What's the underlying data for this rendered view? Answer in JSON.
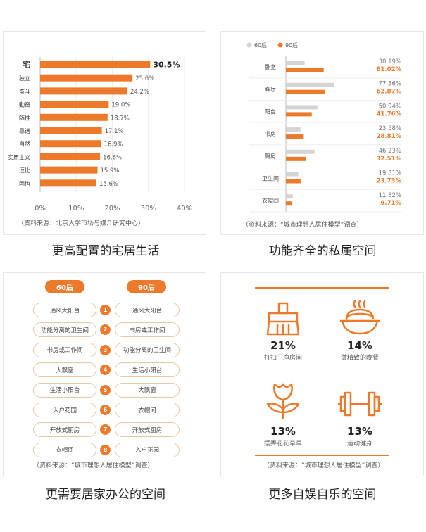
{
  "chart_data": [
    {
      "type": "bar",
      "orientation": "horizontal",
      "categories": [
        "宅",
        "独立",
        "奋斗",
        "勤奋",
        "随性",
        "靠谱",
        "自然",
        "实用主义",
        "逗比",
        "固执"
      ],
      "values": [
        30.5,
        25.6,
        24.2,
        19.0,
        18.7,
        17.1,
        16.9,
        16.6,
        15.9,
        15.6
      ],
      "value_labels": [
        "30.5%",
        "25.6%",
        "24.2%",
        "19.0%",
        "18.7%",
        "17.1%",
        "16.9%",
        "16.6%",
        "15.9%",
        "15.6%"
      ],
      "xticks": [
        "0%",
        "10%",
        "20%",
        "30%",
        "40%"
      ],
      "xlim": [
        0,
        40
      ],
      "source": "（资料来源：北京大学市场与媒介研究中心）",
      "color": "#ec7a2a"
    },
    {
      "type": "bar",
      "orientation": "horizontal",
      "categories": [
        "卧室",
        "客厅",
        "阳台",
        "书房",
        "厨房",
        "卫生间",
        "衣帽间"
      ],
      "series": [
        {
          "name": "60后",
          "color": "#d4d4d4",
          "values": [
            30.19,
            77.36,
            50.94,
            23.58,
            46.23,
            19.81,
            11.32
          ],
          "labels": [
            "30.19%",
            "77.36%",
            "50.94%",
            "23.58%",
            "46.23%",
            "19.81%",
            "11.32%"
          ]
        },
        {
          "name": "90后",
          "color": "#ec7a2a",
          "values": [
            61.02,
            62.87,
            41.76,
            28.81,
            32.51,
            23.73,
            9.71
          ],
          "labels": [
            "61.02%",
            "62.87%",
            "41.76%",
            "28.81%",
            "32.51%",
            "23.73%",
            "9.71%"
          ]
        }
      ],
      "xlim": [
        0,
        100
      ],
      "source": "（资料来源：“城市理想人居住模型”调查）"
    }
  ],
  "captions": {
    "tl": "更高配置的宅居生活",
    "tr": "功能齐全的私属空间",
    "bl": "更需要居家办公的空间",
    "br": "更多自娱自乐的空间"
  },
  "ranking": {
    "left_header": "60后",
    "right_header": "90后",
    "left": [
      "通风大阳台",
      "功能分离的卫生间",
      "书房或工作间",
      "大飘窗",
      "生活小阳台",
      "入户花园",
      "开放式厨房",
      "衣帽间"
    ],
    "right": [
      "通风大阳台",
      "书房或工作间",
      "功能分离的卫生间",
      "生活小阳台",
      "大飘窗",
      "衣帽间",
      "开放式厨房",
      "入户花园"
    ],
    "numbers": [
      "1",
      "2",
      "3",
      "4",
      "5",
      "6",
      "7",
      "8"
    ],
    "source": "（资料来源：“城市理想人居住模型”调查）"
  },
  "leisure": {
    "items": [
      {
        "icon": "broom-icon",
        "percent": "21%",
        "desc": "打扫干净房间"
      },
      {
        "icon": "noodle-bowl-icon",
        "percent": "14%",
        "desc": "做精致的晚餐"
      },
      {
        "icon": "flower-icon",
        "percent": "13%",
        "desc": "摆弄花花草草"
      },
      {
        "icon": "dumbbell-icon",
        "percent": "13%",
        "desc": "运动健身"
      }
    ],
    "source": "（资料来源：“城市理想人居住模型”调查）",
    "accent": "#ec7a2a"
  }
}
